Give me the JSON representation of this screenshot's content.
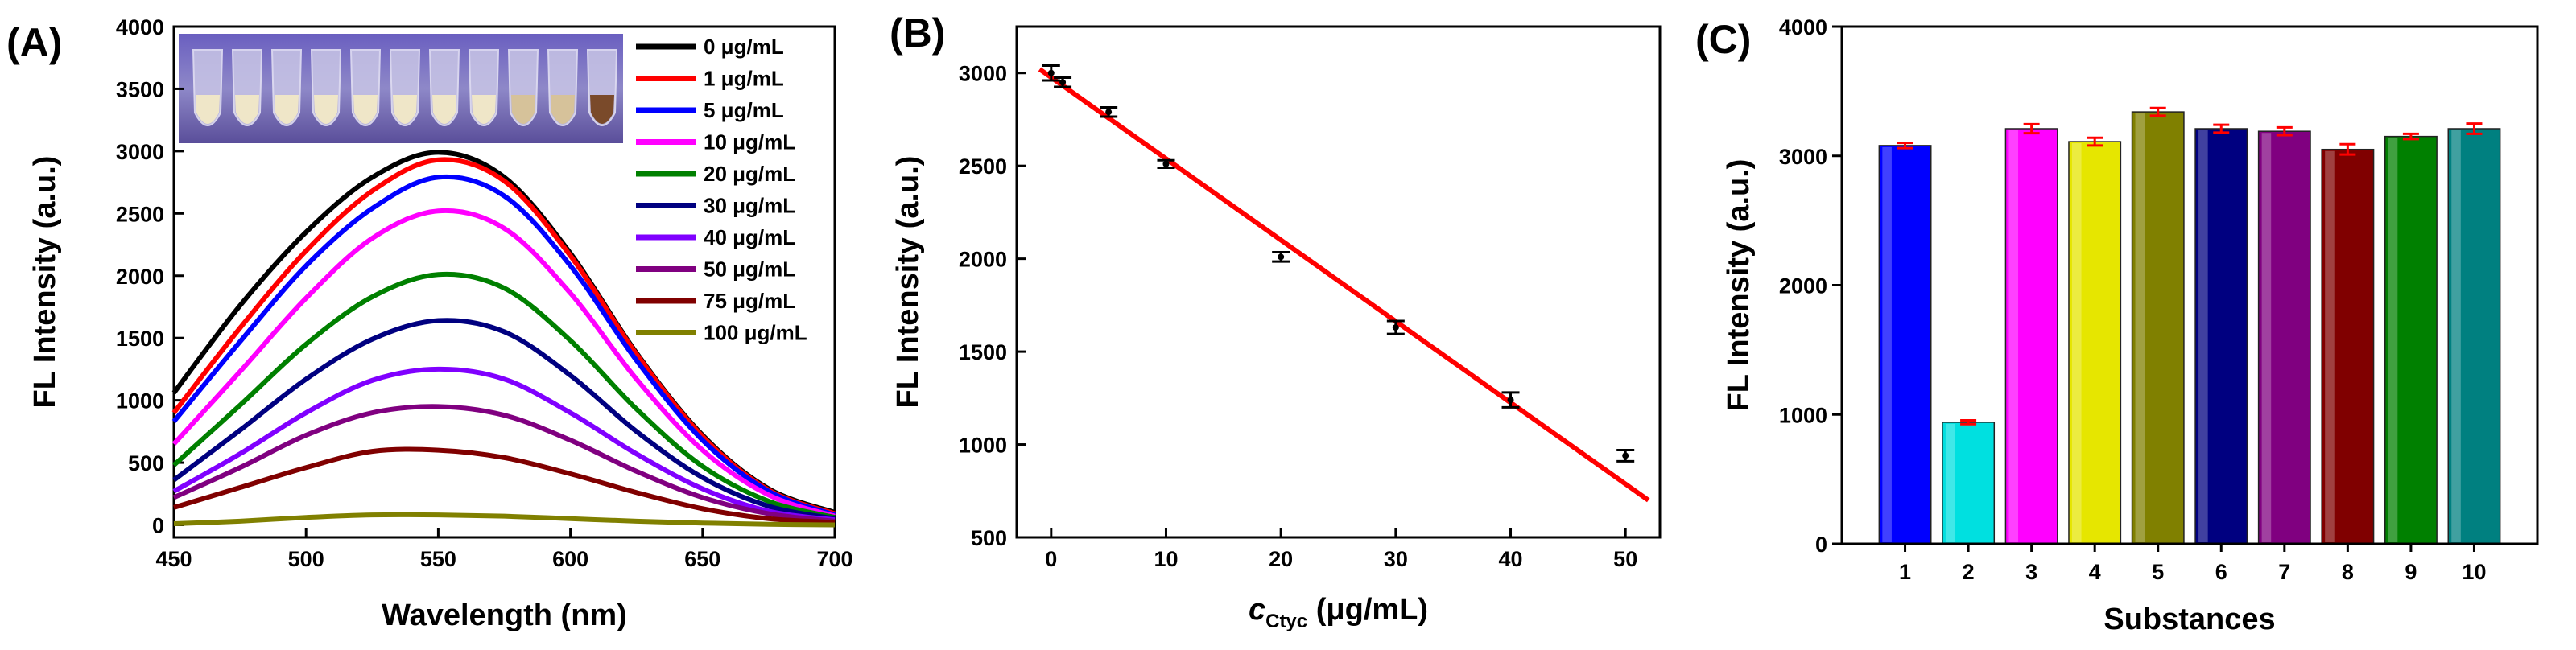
{
  "chart_data": [
    {
      "panel": "(A)",
      "type": "line",
      "xlabel": "Wavelength (nm)",
      "ylabel": "FL Intensity (a.u.)",
      "xlim": [
        450,
        700
      ],
      "ylim": [
        -100,
        4000
      ],
      "xticks": [
        450,
        500,
        550,
        600,
        650,
        700
      ],
      "yticks": [
        0,
        500,
        1000,
        1500,
        2000,
        2500,
        3000,
        3500,
        4000
      ],
      "legend": "top-right",
      "x": [
        450,
        475,
        500,
        525,
        550,
        575,
        600,
        625,
        650,
        675,
        700
      ],
      "series": [
        {
          "name": "0 μg/mL",
          "color": "#000000",
          "values": [
            1060,
            1760,
            2350,
            2790,
            2990,
            2790,
            2180,
            1380,
            720,
            290,
            100
          ]
        },
        {
          "name": "1 μg/mL",
          "color": "#ff0000",
          "values": [
            900,
            1580,
            2200,
            2680,
            2930,
            2760,
            2160,
            1370,
            710,
            280,
            90
          ]
        },
        {
          "name": "5 μg/mL",
          "color": "#0000ff",
          "values": [
            830,
            1470,
            2080,
            2540,
            2790,
            2640,
            2080,
            1320,
            680,
            270,
            80
          ]
        },
        {
          "name": "10 μg/mL",
          "color": "#ff00ff",
          "values": [
            650,
            1230,
            1820,
            2300,
            2520,
            2380,
            1860,
            1170,
            600,
            240,
            70
          ]
        },
        {
          "name": "20 μg/mL",
          "color": "#008000",
          "values": [
            480,
            960,
            1450,
            1830,
            2010,
            1900,
            1480,
            930,
            470,
            190,
            60
          ]
        },
        {
          "name": "30 μg/mL",
          "color": "#000080",
          "values": [
            360,
            760,
            1170,
            1490,
            1640,
            1550,
            1200,
            750,
            380,
            150,
            50
          ]
        },
        {
          "name": "40 μg/mL",
          "color": "#8000ff",
          "values": [
            270,
            570,
            900,
            1160,
            1250,
            1170,
            900,
            570,
            290,
            110,
            40
          ]
        },
        {
          "name": "50 μg/mL",
          "color": "#800080",
          "values": [
            220,
            460,
            720,
            900,
            950,
            880,
            680,
            430,
            220,
            90,
            30
          ]
        },
        {
          "name": "75 μg/mL",
          "color": "#800000",
          "values": [
            140,
            300,
            460,
            590,
            600,
            540,
            410,
            260,
            130,
            50,
            20
          ]
        },
        {
          "name": "100 μg/mL",
          "color": "#808000",
          "values": [
            10,
            30,
            60,
            80,
            80,
            70,
            50,
            30,
            15,
            5,
            0
          ]
        }
      ],
      "inset": "photo of sample vials under UV light"
    },
    {
      "panel": "(B)",
      "type": "scatter",
      "xlabel_main": "c",
      "xlabel_sub": "Ctyc",
      "xlabel_rest": " (μg/mL)",
      "ylabel": "FL Intensity (a.u.)",
      "xlim": [
        -3,
        53
      ],
      "ylim": [
        500,
        3250
      ],
      "xticks": [
        0,
        10,
        20,
        30,
        40,
        50
      ],
      "yticks": [
        500,
        1000,
        1500,
        2000,
        2500,
        3000
      ],
      "points": [
        {
          "x": 0,
          "y": 3000,
          "err": 40
        },
        {
          "x": 1,
          "y": 2950,
          "err": 25
        },
        {
          "x": 5,
          "y": 2790,
          "err": 25
        },
        {
          "x": 10,
          "y": 2510,
          "err": 20
        },
        {
          "x": 20,
          "y": 2010,
          "err": 25
        },
        {
          "x": 30,
          "y": 1630,
          "err": 35
        },
        {
          "x": 40,
          "y": 1240,
          "err": 40
        },
        {
          "x": 50,
          "y": 940,
          "err": 30
        }
      ],
      "fit": {
        "x": [
          -1,
          52
        ],
        "y": [
          3020,
          700
        ],
        "color": "#ff0000"
      }
    },
    {
      "panel": "(C)",
      "type": "bar",
      "xlabel": "Substances",
      "ylabel": "FL Intensity (a.u.)",
      "ylim": [
        0,
        4000
      ],
      "yticks": [
        0,
        1000,
        2000,
        3000,
        4000
      ],
      "categories": [
        "1",
        "2",
        "3",
        "4",
        "5",
        "6",
        "7",
        "8",
        "9",
        "10"
      ],
      "values": [
        3080,
        940,
        3210,
        3110,
        3340,
        3210,
        3190,
        3050,
        3150,
        3210
      ],
      "errors": [
        20,
        15,
        35,
        30,
        30,
        30,
        30,
        40,
        20,
        40
      ],
      "colors": [
        "#0000ff",
        "#00e0e0",
        "#ff00ff",
        "#e6e600",
        "#808000",
        "#000080",
        "#800080",
        "#800000",
        "#008000",
        "#008080"
      ]
    }
  ]
}
